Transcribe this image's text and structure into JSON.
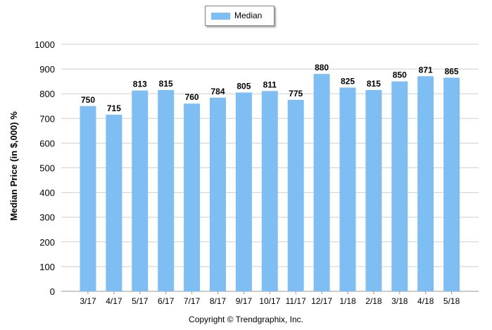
{
  "chart_data": {
    "type": "bar",
    "categories": [
      "3/17",
      "4/17",
      "5/17",
      "6/17",
      "7/17",
      "8/17",
      "9/17",
      "10/17",
      "11/17",
      "12/17",
      "1/18",
      "2/18",
      "3/18",
      "4/18",
      "5/18"
    ],
    "series": [
      {
        "name": "Median",
        "values": [
          750,
          715,
          813,
          815,
          760,
          784,
          805,
          811,
          775,
          880,
          825,
          815,
          850,
          871,
          865
        ]
      }
    ],
    "ylabel": "Median Price (in $,000) %",
    "xlabel": "",
    "ylim": [
      0,
      1000
    ],
    "yticks": [
      0,
      100,
      200,
      300,
      400,
      500,
      600,
      700,
      800,
      900,
      1000
    ],
    "grid": true,
    "legend_position": "top-center",
    "data_labels": true,
    "colors": {
      "bar": "#7fbef2",
      "grid": "#cfcfcf",
      "axis": "#999999"
    }
  },
  "footer": {
    "copyright": "Copyright © Trendgraphix, Inc."
  }
}
